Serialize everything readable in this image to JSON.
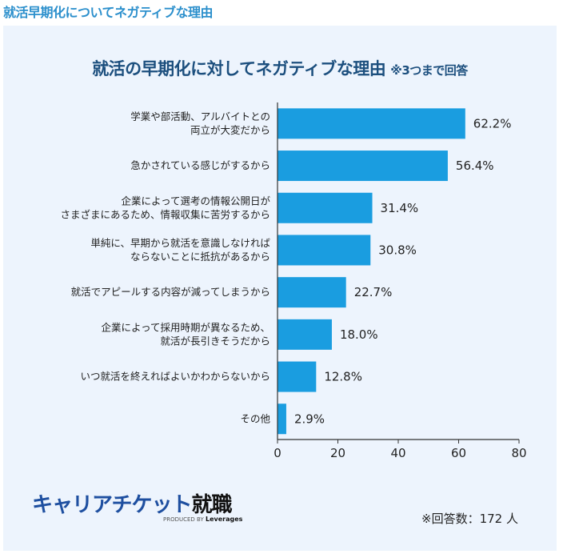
{
  "header": {
    "title": "就活早期化についてネガティブな理由"
  },
  "logo": {
    "main": "キャリアチケット",
    "main_bold": "就職",
    "produced_by": "PRODUCED BY",
    "company": "Leverages"
  },
  "footnote": "※回答数：172 人",
  "chart_data": {
    "type": "bar",
    "orientation": "horizontal",
    "title": "就活の早期化に対してネガティブな理由",
    "subtitle": "※3つまで回答",
    "categories": [
      [
        "学業や部活動、アルバイトとの",
        "両立が大変だから"
      ],
      [
        "急かされている感じがするから"
      ],
      [
        "企業によって選考の情報公開日が",
        "さまざまにあるため、情報収集に苦労するから"
      ],
      [
        "単純に、早期から就活を意識しなければ",
        "ならないことに抵抗があるから"
      ],
      [
        "就活でアピールする内容が減ってしまうから"
      ],
      [
        "企業によって採用時期が異なるため、",
        "就活が長引きそうだから"
      ],
      [
        "いつ就活を終えればよいかわからないから"
      ],
      [
        "その他"
      ]
    ],
    "values": [
      62.2,
      56.4,
      31.4,
      30.8,
      22.7,
      18.0,
      12.8,
      2.9
    ],
    "value_labels": [
      "62.2%",
      "56.4%",
      "31.4%",
      "30.8%",
      "22.7%",
      "18.0%",
      "12.8%",
      "2.9%"
    ],
    "xlim": [
      0,
      80
    ],
    "xticks": [
      "0",
      "20",
      "40",
      "60",
      "80"
    ],
    "grid": false,
    "bar_color": "#1a9de0",
    "title_color": "#1c4f7e",
    "header_color": "#2b8fcc"
  }
}
